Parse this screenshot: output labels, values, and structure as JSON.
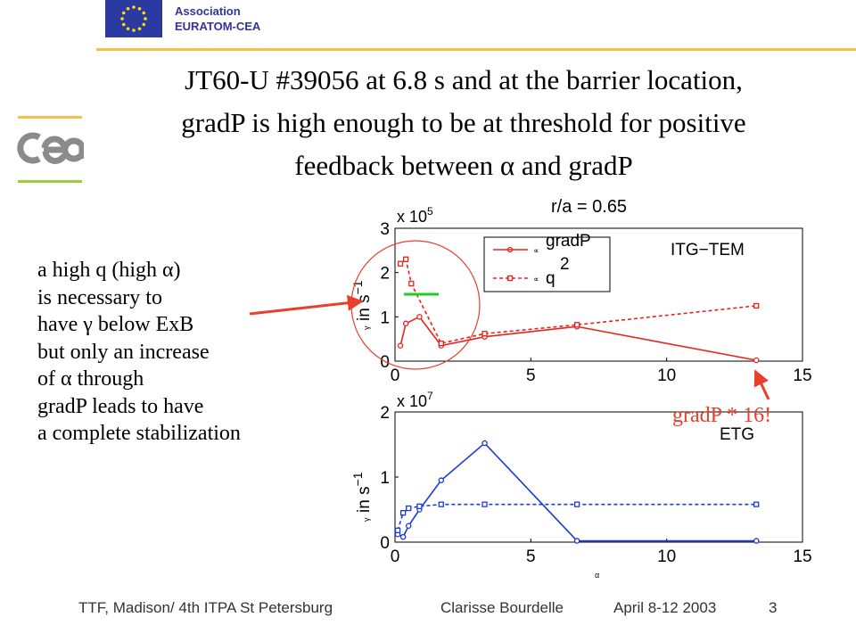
{
  "header": {
    "association_line1": "Association",
    "association_line2": "EURATOM-CEA"
  },
  "title_lines": [
    "JT60-U #39056 at 6.8 s and at the barrier location,",
    "gradP is high enough to be at threshold for positive",
    "feedback between α and gradP"
  ],
  "annotation_lines": [
    "a high q (high α)",
    "is necessary to",
    "have γ below ExB",
    "but only an increase",
    "of α through",
    "gradP leads to have",
    "a complete stabilization"
  ],
  "callout_text": "gradP * 16!",
  "colors": {
    "top_series": "#e8231e",
    "bottom_series": "#1a3bd6",
    "accent_green": "#22cc22",
    "rule": "#f3c24a",
    "callout": "#e8402a"
  },
  "chart_data": [
    {
      "type": "line",
      "title": "r/a = 0.65",
      "annotation": "ITG−TEM",
      "multiplier_label": "x 10",
      "multiplier_exp": "5",
      "ylabel_main": "in s",
      "ylabel_exp": "−1",
      "ylabel_prefix": "γ",
      "xlim": [
        0,
        15
      ],
      "ylim": [
        0,
        3
      ],
      "xticks": [
        "0",
        "5",
        "10",
        "15"
      ],
      "yticks": [
        "0",
        "1",
        "2",
        "3"
      ],
      "legend": {
        "placement": "top-center",
        "entries": [
          {
            "prefix": "∝",
            "label": "gradP",
            "style": "solid"
          },
          {
            "prefix": "∝",
            "label": "q",
            "exp": "2",
            "style": "dashed"
          }
        ]
      },
      "series": [
        {
          "x": [
            0.2,
            0.4,
            0.9,
            1.7,
            3.3,
            6.7,
            13.3
          ],
          "y": [
            0.35,
            0.85,
            1.0,
            0.35,
            0.55,
            0.78,
            0.02
          ],
          "style": "solid"
        },
        {
          "x": [
            0.2,
            0.4,
            0.6,
            1.7,
            3.3,
            6.7,
            13.3
          ],
          "y": [
            2.2,
            2.3,
            1.75,
            0.4,
            0.62,
            0.82,
            1.25
          ],
          "style": "dashed"
        }
      ]
    },
    {
      "type": "line",
      "annotation": "ETG",
      "multiplier_label": "x 10",
      "multiplier_exp": "7",
      "ylabel_main": "in s",
      "ylabel_exp": "−1",
      "ylabel_prefix": "γ",
      "xlabel": "α",
      "xlim": [
        0,
        15
      ],
      "ylim": [
        0,
        2
      ],
      "xticks": [
        "0",
        "5",
        "10",
        "15"
      ],
      "yticks": [
        "0",
        "1",
        "2"
      ],
      "series": [
        {
          "x": [
            0.1,
            0.3,
            0.5,
            0.9,
            1.7,
            3.3,
            6.7,
            13.3
          ],
          "y": [
            0.12,
            0.08,
            0.25,
            0.5,
            0.95,
            1.52,
            0.02,
            0.02
          ],
          "style": "solid"
        },
        {
          "x": [
            0.1,
            0.3,
            0.5,
            0.9,
            1.7,
            3.3,
            6.7,
            13.3
          ],
          "y": [
            0.18,
            0.45,
            0.52,
            0.55,
            0.58,
            0.58,
            0.58,
            0.58
          ],
          "style": "dashed"
        }
      ]
    }
  ],
  "footer": {
    "left": "TTF, Madison/ 4th ITPA St Petersburg",
    "center": "Clarisse Bourdelle",
    "date": "April 8-12  2003",
    "page": "3"
  }
}
